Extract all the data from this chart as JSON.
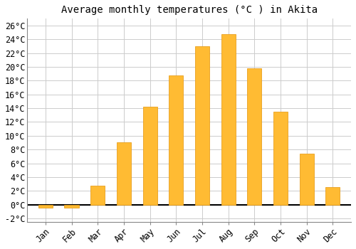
{
  "months": [
    "Jan",
    "Feb",
    "Mar",
    "Apr",
    "May",
    "Jun",
    "Jul",
    "Aug",
    "Sep",
    "Oct",
    "Nov",
    "Dec"
  ],
  "values": [
    -0.5,
    -0.5,
    2.7,
    9.0,
    14.2,
    18.8,
    23.0,
    24.8,
    19.8,
    13.5,
    7.4,
    2.5
  ],
  "bar_color": "#FFBB33",
  "bar_edge_color": "#E8A020",
  "background_color": "#FFFFFF",
  "grid_color": "#CCCCCC",
  "title": "Average monthly temperatures (°C ) in Akita",
  "title_fontsize": 10,
  "tick_fontsize": 8.5,
  "ylim": [
    -2.5,
    27
  ],
  "yticks": [
    -2,
    0,
    2,
    4,
    6,
    8,
    10,
    12,
    14,
    16,
    18,
    20,
    22,
    24,
    26
  ]
}
